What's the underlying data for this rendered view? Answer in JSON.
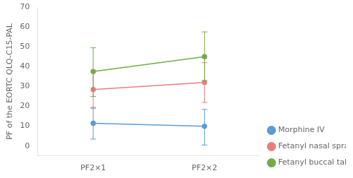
{
  "chart_data": {
    "type": "line",
    "categories": [
      "PF2×1",
      "PF2×2"
    ],
    "series": [
      {
        "name": "Morphine IV",
        "color": "#5b9bd5",
        "values": [
          11.5,
          10.0
        ],
        "ci_low": [
          3.5,
          0.5
        ],
        "ci_high": [
          19.5,
          18.5
        ]
      },
      {
        "name": "Fetanyl nasal spray",
        "color": "#e87d7d",
        "values": [
          28.5,
          32.0
        ],
        "ci_low": [
          19.0,
          22.0
        ],
        "ci_high": [
          38.0,
          42.0
        ]
      },
      {
        "name": "Fetanyl buccal tablets",
        "color": "#70ad47",
        "values": [
          37.5,
          45.0
        ],
        "ci_low": [
          25.0,
          33.0
        ],
        "ci_high": [
          49.5,
          57.5
        ]
      }
    ],
    "ylabel": "PF of the EORTC QLQ-C15-PAL",
    "ylim": [
      -5,
      70
    ],
    "yticks": [
      0,
      10,
      20,
      30,
      40,
      50,
      60,
      70
    ],
    "grid": false,
    "legend": "lower right",
    "marker": "circle",
    "line_style": "solid"
  }
}
